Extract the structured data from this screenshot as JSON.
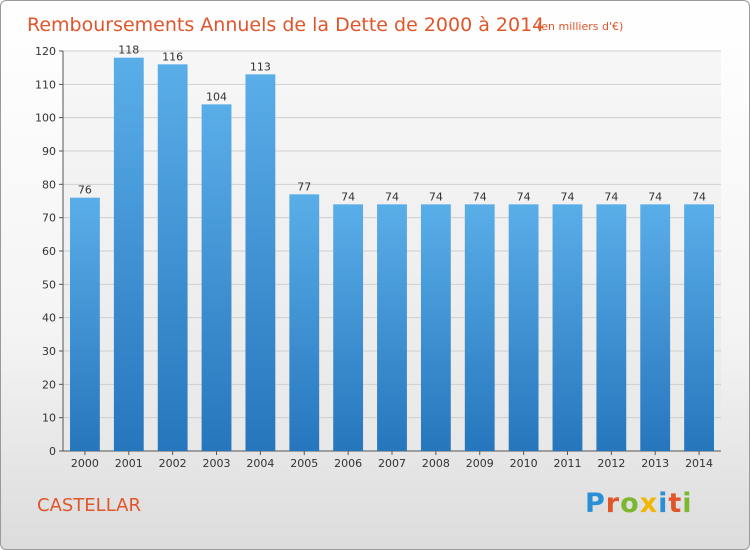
{
  "chart_data": {
    "type": "bar",
    "title": "Remboursements Annuels de la Dette de 2000 à 2014",
    "subtitle": "(en milliers d'€)",
    "categories": [
      "2000",
      "2001",
      "2002",
      "2003",
      "2004",
      "2005",
      "2006",
      "2007",
      "2008",
      "2009",
      "2010",
      "2011",
      "2012",
      "2013",
      "2014"
    ],
    "values": [
      76,
      118,
      116,
      104,
      113,
      77,
      74,
      74,
      74,
      74,
      74,
      74,
      74,
      74,
      74
    ],
    "ylim": [
      0,
      120
    ],
    "yticks": [
      0,
      10,
      20,
      30,
      40,
      50,
      60,
      70,
      80,
      90,
      100,
      110,
      120
    ],
    "grid": true,
    "xlabel": "",
    "ylabel": ""
  },
  "footer": {
    "commune": "CASTELLAR",
    "logo_letters": [
      "P",
      "r",
      "o",
      "x",
      "i",
      "t",
      "i"
    ],
    "logo_colors": [
      "#2a8fd6",
      "#e0552a",
      "#7cb82f",
      "#f2b705",
      "#2a8fd6",
      "#e0552a",
      "#7cb82f"
    ]
  },
  "colors": {
    "bar_top": "#5aaee8",
    "bar_bottom": "#2676bd",
    "grid": "#cfcfcf",
    "title": "#e0552a"
  }
}
